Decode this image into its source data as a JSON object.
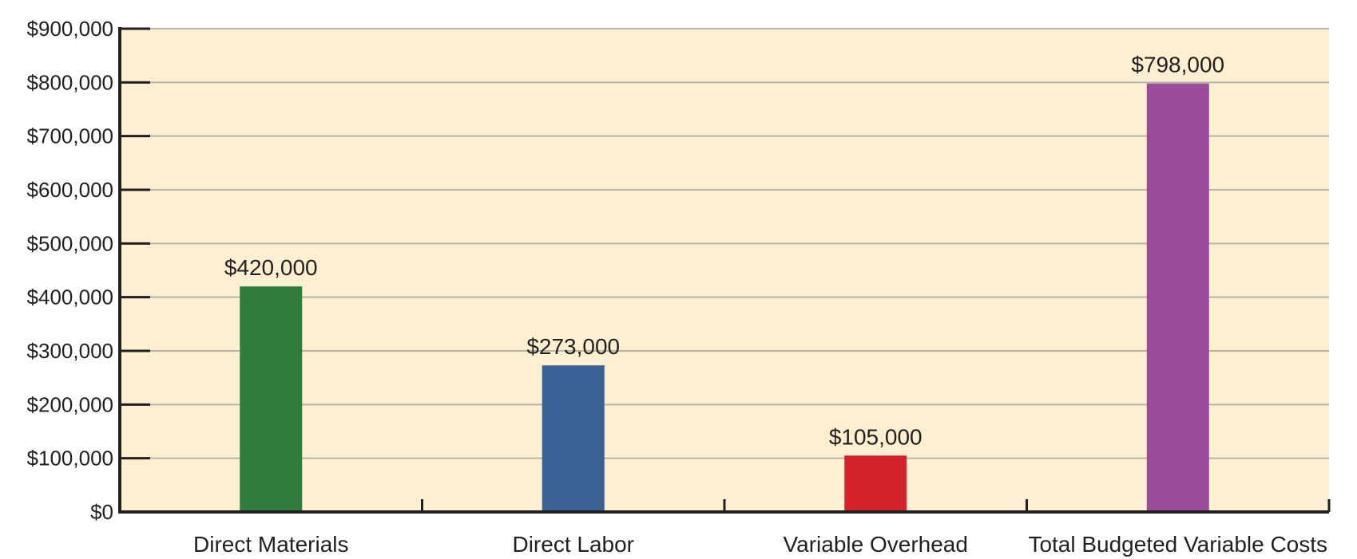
{
  "colors": {
    "plot_background": "#fdefd2",
    "gridline": "#b9b3a6",
    "axis": "#231f20",
    "text": "#231f20"
  },
  "chart_data": {
    "type": "bar",
    "title": "",
    "xlabel": "",
    "ylabel": "",
    "categories": [
      "Direct Materials",
      "Direct Labor",
      "Variable Overhead",
      "Total Budgeted Variable Costs"
    ],
    "values": [
      420000,
      273000,
      105000,
      798000
    ],
    "value_labels": [
      "$420,000",
      "$273,000",
      "$105,000",
      "$798,000"
    ],
    "bar_colors": [
      "#2e7d3c",
      "#3a6094",
      "#d2232b",
      "#9a4c9b"
    ],
    "ylim": [
      0,
      900000
    ],
    "y_ticks": [
      0,
      100000,
      200000,
      300000,
      400000,
      500000,
      600000,
      700000,
      800000,
      900000
    ],
    "y_tick_labels": [
      "$0",
      "$100,000",
      "$200,000",
      "$300,000",
      "$400,000",
      "$500,000",
      "$600,000",
      "$700,000",
      "$800,000",
      "$900,000"
    ],
    "grid": true,
    "legend": "none"
  }
}
